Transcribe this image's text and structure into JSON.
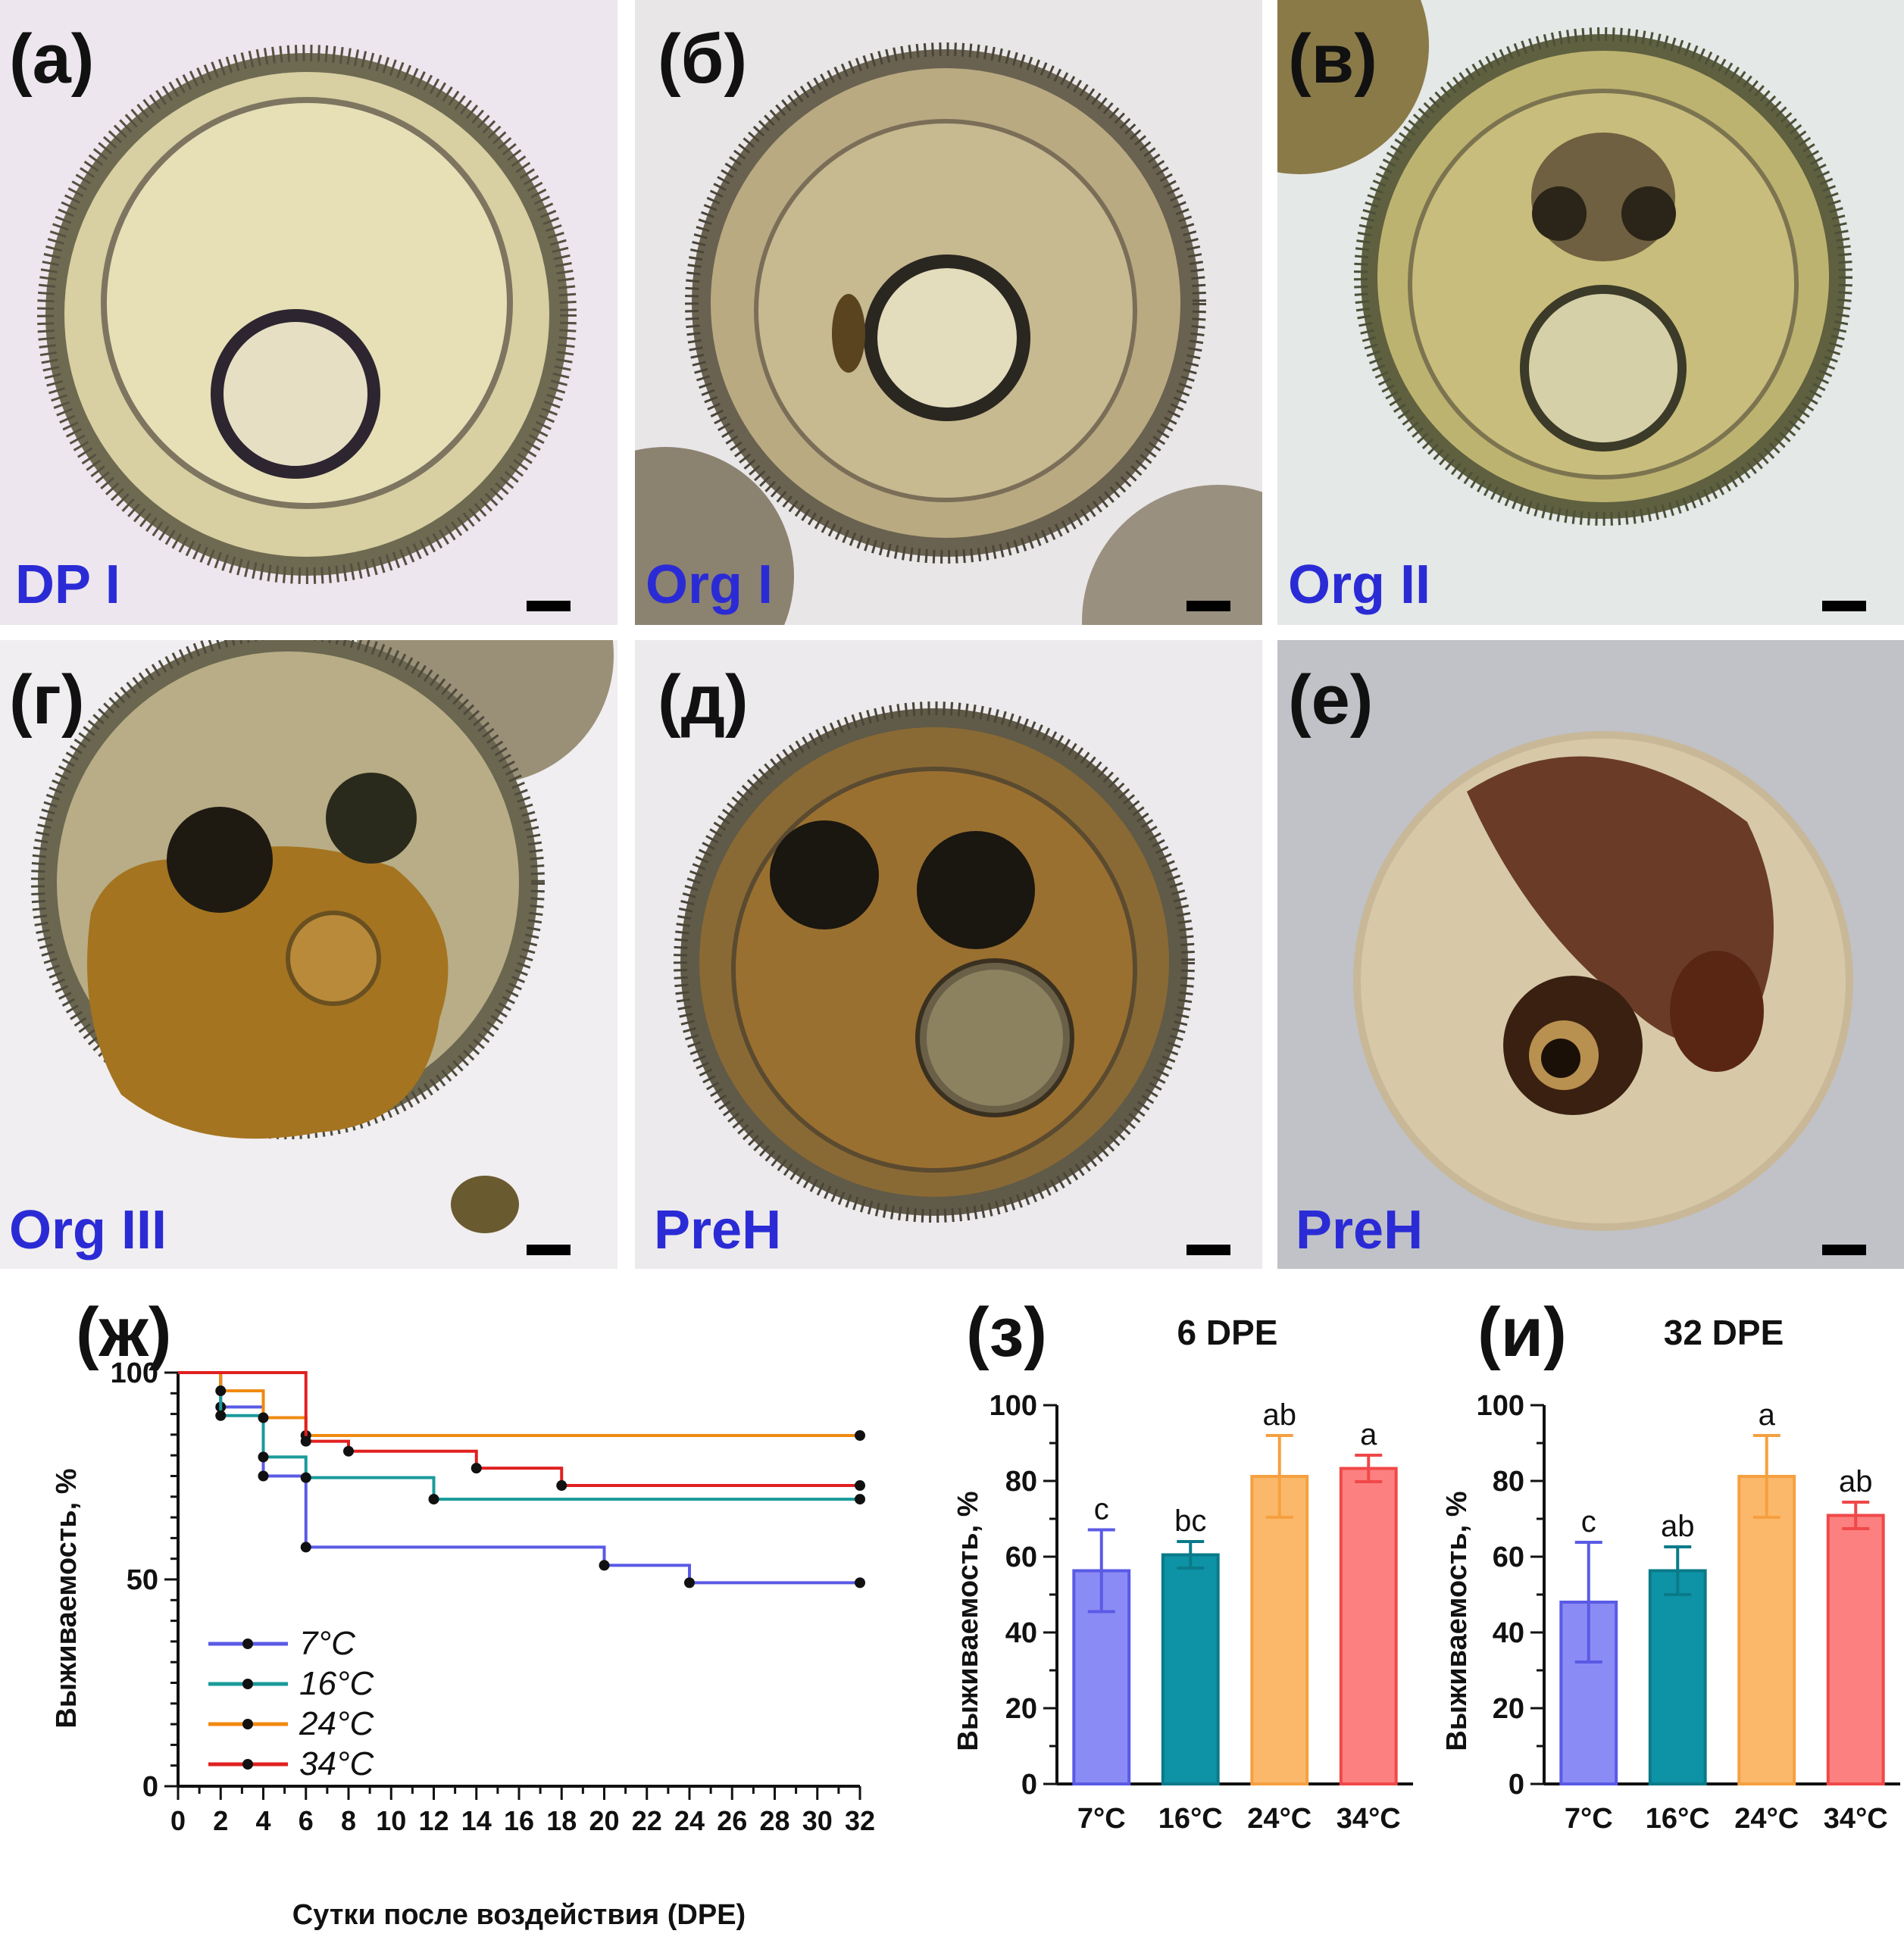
{
  "photo_panels": [
    {
      "label": "(а)",
      "stage": "DP I"
    },
    {
      "label": "(б)",
      "stage": "Org I"
    },
    {
      "label": "(в)",
      "stage": "Org II"
    },
    {
      "label": "(г)",
      "stage": "Org III"
    },
    {
      "label": "(д)",
      "stage": "PreH"
    },
    {
      "label": "(е)",
      "stage": "PreH"
    }
  ],
  "chart_data": [
    {
      "label": "(ж)",
      "type": "line",
      "step": true,
      "xlabel": "Сутки после воздействия (DPE)",
      "ylabel": "Выживаемость, %",
      "xlim": [
        0,
        32
      ],
      "ylim": [
        0,
        100
      ],
      "xticks": [
        "0",
        "2",
        "4",
        "6",
        "8",
        "10",
        "12",
        "14",
        "16",
        "18",
        "20",
        "22",
        "24",
        "26",
        "28",
        "30",
        "32"
      ],
      "yticks": [
        "0",
        "50",
        "100"
      ],
      "legend": "bottom-left",
      "series": [
        {
          "name": "7°C",
          "color": "#5a5ae6",
          "x": [
            0,
            2,
            4,
            6,
            20,
            24,
            32
          ],
          "y": [
            100,
            91.7,
            75,
            57.8,
            53.4,
            49.2,
            49.2
          ],
          "markers": [
            [
              2,
              91.7
            ],
            [
              4,
              75
            ],
            [
              6,
              57.8
            ],
            [
              20,
              53.4
            ],
            [
              24,
              49.2
            ],
            [
              32,
              49.2
            ]
          ]
        },
        {
          "name": "16°C",
          "color": "#1a9a9a",
          "x": [
            0,
            2,
            4,
            6,
            12,
            32
          ],
          "y": [
            100,
            89.6,
            79.6,
            74.6,
            69.4,
            69.4
          ],
          "markers": [
            [
              2,
              89.6
            ],
            [
              4,
              79.6
            ],
            [
              6,
              74.6
            ],
            [
              12,
              69.4
            ],
            [
              32,
              69.4
            ]
          ]
        },
        {
          "name": "24°C",
          "color": "#f08a10",
          "x": [
            0,
            2,
            4,
            6,
            32
          ],
          "y": [
            100,
            95.6,
            89.1,
            84.8,
            84.8
          ],
          "markers": [
            [
              2,
              95.6
            ],
            [
              4,
              89.1
            ],
            [
              6,
              84.8
            ],
            [
              32,
              84.8
            ]
          ]
        },
        {
          "name": "34°C",
          "color": "#e02020",
          "x": [
            0,
            6,
            8,
            14,
            18,
            32
          ],
          "y": [
            100,
            83.4,
            81,
            76.9,
            72.7,
            72.7
          ],
          "markers": [
            [
              6,
              83.4
            ],
            [
              8,
              81
            ],
            [
              14,
              76.9
            ],
            [
              18,
              72.7
            ],
            [
              32,
              72.7
            ]
          ]
        }
      ]
    },
    {
      "label": "(з)",
      "type": "bar",
      "title": "6 DPE",
      "ylabel": "Выживаемость, %",
      "ylim": [
        0,
        100
      ],
      "yticks": [
        "0",
        "20",
        "40",
        "60",
        "80",
        "100"
      ],
      "categories": [
        "7°C",
        "16°C",
        "24°C",
        "34°C"
      ],
      "values": [
        56.3,
        60.5,
        81.2,
        83.3
      ],
      "errors": [
        10.8,
        3.5,
        10.8,
        3.5
      ],
      "letters": [
        "c",
        "bc",
        "ab",
        "a"
      ],
      "colors": [
        "#8b8bf5",
        "#0d93a5",
        "#fbb86b",
        "#fd8080"
      ],
      "edge_colors": [
        "#5a5ae6",
        "#0a7a8a",
        "#f5a040",
        "#f04848"
      ]
    },
    {
      "label": "(и)",
      "type": "bar",
      "title": "32 DPE",
      "ylabel": "Выживаемость, %",
      "ylim": [
        0,
        100
      ],
      "yticks": [
        "0",
        "20",
        "40",
        "60",
        "80",
        "100"
      ],
      "categories": [
        "7°C",
        "16°C",
        "24°C",
        "34°C"
      ],
      "values": [
        48.0,
        56.3,
        81.2,
        70.9
      ],
      "errors": [
        15.8,
        6.3,
        10.8,
        3.5
      ],
      "letters": [
        "c",
        "ab",
        "a",
        "ab"
      ],
      "colors": [
        "#8b8bf5",
        "#0d93a5",
        "#fbb86b",
        "#fd8080"
      ],
      "edge_colors": [
        "#5a5ae6",
        "#0a7a8a",
        "#f5a040",
        "#f04848"
      ]
    }
  ]
}
